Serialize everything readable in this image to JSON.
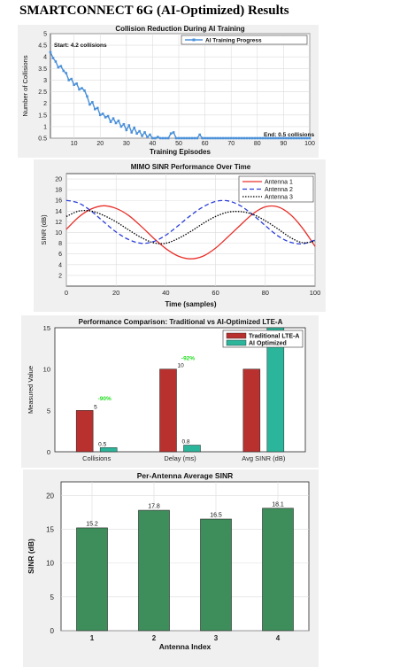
{
  "page": {
    "heading": "SMARTCONNECT 6G (AI-Optimized) Results"
  },
  "chart_data": [
    {
      "type": "line",
      "title": "Collision Reduction During AI Training",
      "xlabel": "Training Episodes",
      "ylabel": "Number of Collisions",
      "xlim": [
        1,
        100
      ],
      "ylim": [
        0.5,
        5
      ],
      "xticks": [
        10,
        20,
        30,
        40,
        50,
        60,
        70,
        80,
        90,
        100
      ],
      "yticks": [
        0.5,
        1,
        1.5,
        2,
        2.5,
        3,
        3.5,
        4,
        4.5,
        5
      ],
      "grid": true,
      "legend": "top-right",
      "series": [
        {
          "name": "AI Training Progress",
          "color": "#4a90d9",
          "x": [
            1,
            2,
            3,
            4,
            5,
            6,
            7,
            8,
            9,
            10,
            11,
            12,
            13,
            14,
            15,
            16,
            17,
            18,
            19,
            20,
            21,
            22,
            23,
            24,
            25,
            26,
            27,
            28,
            29,
            30,
            31,
            32,
            33,
            34,
            35,
            36,
            37,
            38,
            39,
            40,
            41,
            42,
            43,
            44,
            45,
            46,
            47,
            48,
            49,
            50,
            51,
            52,
            53,
            54,
            55,
            56,
            57,
            58,
            59,
            60,
            61,
            62,
            63,
            64,
            65,
            66,
            67,
            68,
            69,
            70,
            71,
            72,
            73,
            74,
            75,
            76,
            77,
            78,
            79,
            80,
            81,
            82,
            83,
            84,
            85,
            86,
            87,
            88,
            89,
            90,
            91,
            92,
            93,
            94,
            95,
            96,
            97,
            98,
            99,
            100
          ],
          "values": [
            4.2,
            3.95,
            3.8,
            3.55,
            3.6,
            3.4,
            3.3,
            3.0,
            3.05,
            2.8,
            2.85,
            2.6,
            2.65,
            2.55,
            2.3,
            1.95,
            2.05,
            1.75,
            1.8,
            1.5,
            1.55,
            1.4,
            1.45,
            1.2,
            1.35,
            1.15,
            1.25,
            1.0,
            1.1,
            0.85,
            1.05,
            0.75,
            0.95,
            0.7,
            0.8,
            0.6,
            0.75,
            0.55,
            0.65,
            0.5,
            0.5,
            0.55,
            0.5,
            0.5,
            0.5,
            0.5,
            0.7,
            0.75,
            0.5,
            0.5,
            0.5,
            0.5,
            0.5,
            0.5,
            0.5,
            0.5,
            0.5,
            0.65,
            0.5,
            0.5,
            0.5,
            0.5,
            0.5,
            0.5,
            0.5,
            0.5,
            0.5,
            0.5,
            0.5,
            0.5,
            0.5,
            0.5,
            0.5,
            0.5,
            0.5,
            0.5,
            0.5,
            0.5,
            0.5,
            0.5,
            0.5,
            0.5,
            0.5,
            0.5,
            0.5,
            0.5,
            0.5,
            0.5,
            0.5,
            0.5,
            0.5,
            0.5,
            0.5,
            0.5,
            0.5,
            0.5,
            0.5,
            0.5,
            0.5,
            0.5
          ]
        }
      ],
      "annotations": [
        {
          "text": "Start: 4.2 collisions",
          "x": 5,
          "y": 4.7
        },
        {
          "text": "End: 0.5 collisions",
          "x": 87,
          "y": 0.65
        }
      ]
    },
    {
      "type": "line",
      "title": "MIMO SINR Performance Over Time",
      "xlabel": "Time (samples)",
      "ylabel": "SINR (dB)",
      "xlim": [
        0,
        100
      ],
      "ylim": [
        0,
        21
      ],
      "xticks": [
        0,
        20,
        40,
        60,
        80,
        100
      ],
      "yticks": [
        2,
        4,
        6,
        8,
        10,
        12,
        14,
        16,
        18,
        20
      ],
      "grid": true,
      "legend": "top-right",
      "series": [
        {
          "name": "Antenna 1",
          "color": "#e8302a",
          "dash": "solid",
          "x": [
            0,
            5,
            10,
            15,
            20,
            25,
            30,
            35,
            40,
            45,
            50,
            55,
            60,
            65,
            70,
            75,
            80,
            85,
            90,
            95,
            100
          ],
          "values": [
            10.6,
            12.9,
            14.4,
            15.0,
            14.5,
            13.2,
            11.2,
            9.0,
            7.0,
            5.6,
            5.1,
            5.6,
            7.1,
            9.2,
            11.4,
            13.5,
            14.8,
            14.8,
            13.4,
            10.8,
            7.4
          ]
        },
        {
          "name": "Antenna 2",
          "color": "#2b3fd9",
          "dash": "dashed",
          "x": [
            0,
            5,
            10,
            15,
            20,
            25,
            30,
            35,
            40,
            45,
            50,
            55,
            60,
            65,
            70,
            75,
            80,
            85,
            90,
            95,
            100
          ],
          "values": [
            16.0,
            15.5,
            14.0,
            12.0,
            10.1,
            8.7,
            8.0,
            8.3,
            9.5,
            11.3,
            13.2,
            14.8,
            15.8,
            15.9,
            15.0,
            13.3,
            11.3,
            9.4,
            8.2,
            7.9,
            8.6
          ]
        },
        {
          "name": "Antenna 3",
          "color": "#000000",
          "dash": "dotted",
          "x": [
            0,
            5,
            10,
            15,
            20,
            25,
            30,
            35,
            40,
            45,
            50,
            55,
            60,
            65,
            70,
            75,
            80,
            85,
            90,
            95,
            100
          ],
          "values": [
            13.0,
            14.0,
            14.0,
            13.2,
            12.0,
            10.5,
            9.1,
            8.1,
            8.0,
            8.9,
            10.2,
            11.7,
            13.0,
            13.8,
            13.9,
            13.4,
            12.2,
            10.7,
            9.1,
            8.1,
            8.4
          ]
        }
      ]
    },
    {
      "type": "bar",
      "title": "Performance Comparison: Traditional vs AI-Optimized LTE-A",
      "xlabel": "",
      "ylabel": "Measured Value",
      "categories": [
        "Collisions",
        "Delay (ms)",
        "Avg SINR (dB)"
      ],
      "ylim": [
        0,
        15
      ],
      "yticks": [
        0,
        5,
        10,
        15
      ],
      "grid": false,
      "legend": "top-right",
      "series": [
        {
          "name": "Traditional LTE-A",
          "color": "#b8312f",
          "values": [
            5,
            10,
            10
          ],
          "labels": [
            "5",
            "10",
            ""
          ]
        },
        {
          "name": "AI Optimized",
          "color": "#2bb59a",
          "values": [
            0.5,
            0.8,
            16
          ],
          "labels": [
            "0.5",
            "0.8",
            ""
          ]
        }
      ],
      "annotations": [
        {
          "text": "-90%",
          "category": "Collisions",
          "y": 6.2,
          "color": "#22dd22"
        },
        {
          "text": "-92%",
          "category": "Delay (ms)",
          "y": 11.1,
          "color": "#22dd22"
        }
      ]
    },
    {
      "type": "bar",
      "title": "Per-Antenna Average SINR",
      "xlabel": "Antenna Index",
      "ylabel": "SINR (dB)",
      "categories": [
        "1",
        "2",
        "3",
        "4"
      ],
      "values": [
        15.2,
        17.8,
        16.5,
        18.1
      ],
      "labels": [
        "15.2",
        "17.8",
        "16.5",
        "18.1"
      ],
      "ylim": [
        0,
        22
      ],
      "yticks": [
        0,
        5,
        10,
        15,
        20
      ],
      "grid": true,
      "color": "#3e8e5c"
    }
  ]
}
